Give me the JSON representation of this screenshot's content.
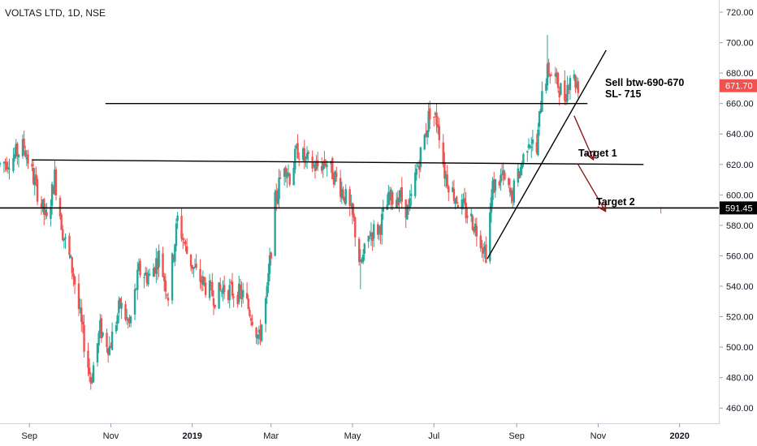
{
  "header": {
    "title": "VOLTAS LTD, 1D, NSE"
  },
  "chart_data": {
    "type": "candlestick",
    "symbol": "VOLTAS LTD",
    "interval": "1D",
    "exchange": "NSE",
    "ylim": [
      450,
      728
    ],
    "y_ticks": [
      460,
      480,
      500,
      520,
      540,
      560,
      580,
      600,
      620,
      640,
      660,
      680,
      700,
      720
    ],
    "y_tick_labels": [
      "460.00",
      "480.00",
      "500.00",
      "520.00",
      "540.00",
      "560.00",
      "580.00",
      "600.00",
      "620.00",
      "640.00",
      "660.00",
      "680.00",
      "700.00",
      "720.00"
    ],
    "x_ticks": [
      {
        "label": "Sep",
        "date": "2018-09-01",
        "year": false
      },
      {
        "label": "Nov",
        "date": "2018-11-01",
        "year": false
      },
      {
        "label": "2019",
        "date": "2019-01-01",
        "year": true
      },
      {
        "label": "Mar",
        "date": "2019-03-01",
        "year": false
      },
      {
        "label": "May",
        "date": "2019-05-01",
        "year": false
      },
      {
        "label": "Jul",
        "date": "2019-07-01",
        "year": false
      },
      {
        "label": "Sep",
        "date": "2019-09-01",
        "year": false
      },
      {
        "label": "Nov",
        "date": "2019-11-01",
        "year": false
      },
      {
        "label": "2020",
        "date": "2020-01-01",
        "year": true
      }
    ],
    "xlim": [
      "2018-08-10",
      "2020-01-31"
    ],
    "price_path": [
      [
        "2018-08-10",
        620
      ],
      [
        "2018-08-20",
        625
      ],
      [
        "2018-08-28",
        632
      ],
      [
        "2018-09-05",
        608
      ],
      [
        "2018-09-14",
        582
      ],
      [
        "2018-09-20",
        612
      ],
      [
        "2018-09-26",
        576
      ],
      [
        "2018-10-04",
        548
      ],
      [
        "2018-10-11",
        508
      ],
      [
        "2018-10-17",
        478
      ],
      [
        "2018-10-24",
        512
      ],
      [
        "2018-10-31",
        500
      ],
      [
        "2018-11-08",
        528
      ],
      [
        "2018-11-15",
        514
      ],
      [
        "2018-11-22",
        550
      ],
      [
        "2018-11-30",
        546
      ],
      [
        "2018-12-07",
        560
      ],
      [
        "2018-12-14",
        534
      ],
      [
        "2018-12-21",
        584
      ],
      [
        "2018-12-28",
        562
      ],
      [
        "2019-01-04",
        548
      ],
      [
        "2019-01-11",
        540
      ],
      [
        "2019-01-18",
        533
      ],
      [
        "2019-01-25",
        539
      ],
      [
        "2019-02-01",
        536
      ],
      [
        "2019-02-08",
        534
      ],
      [
        "2019-02-15",
        520
      ],
      [
        "2019-02-20",
        505
      ],
      [
        "2019-02-26",
        535
      ],
      [
        "2019-03-04",
        595
      ],
      [
        "2019-03-11",
        622
      ],
      [
        "2019-03-15",
        612
      ],
      [
        "2019-03-21",
        630
      ],
      [
        "2019-03-27",
        622
      ],
      [
        "2019-04-04",
        618
      ],
      [
        "2019-04-11",
        622
      ],
      [
        "2019-04-18",
        612
      ],
      [
        "2019-04-25",
        600
      ],
      [
        "2019-05-02",
        582
      ],
      [
        "2019-05-07",
        552
      ],
      [
        "2019-05-14",
        575
      ],
      [
        "2019-05-21",
        578
      ],
      [
        "2019-05-28",
        596
      ],
      [
        "2019-06-05",
        600
      ],
      [
        "2019-06-12",
        588
      ],
      [
        "2019-06-18",
        616
      ],
      [
        "2019-06-24",
        638
      ],
      [
        "2019-06-28",
        655
      ],
      [
        "2019-07-04",
        648
      ],
      [
        "2019-07-09",
        615
      ],
      [
        "2019-07-15",
        602
      ],
      [
        "2019-07-22",
        592
      ],
      [
        "2019-07-29",
        584
      ],
      [
        "2019-08-05",
        572
      ],
      [
        "2019-08-09",
        562
      ],
      [
        "2019-08-14",
        605
      ],
      [
        "2019-08-21",
        612
      ],
      [
        "2019-08-28",
        598
      ],
      [
        "2019-09-04",
        618
      ],
      [
        "2019-09-10",
        638
      ],
      [
        "2019-09-16",
        628
      ],
      [
        "2019-09-20",
        672
      ],
      [
        "2019-09-25",
        682
      ],
      [
        "2019-10-01",
        674
      ],
      [
        "2019-10-07",
        664
      ],
      [
        "2019-10-11",
        680
      ],
      [
        "2019-10-17",
        672
      ]
    ],
    "candle_spikes": [
      {
        "date": "2018-10-17",
        "low": 472
      },
      {
        "date": "2019-02-20",
        "low": 502
      },
      {
        "date": "2019-05-07",
        "low": 538
      },
      {
        "date": "2019-08-09",
        "low": 557
      },
      {
        "date": "2019-06-28",
        "high": 662
      },
      {
        "date": "2019-09-24",
        "high": 705
      },
      {
        "date": "2019-12-18",
        "high": 592
      }
    ],
    "lines": [
      {
        "name": "resistance-line",
        "from": [
          "2018-10-28",
          660
        ],
        "to": [
          "2019-10-24",
          660
        ]
      },
      {
        "name": "support-line-1",
        "from": [
          "2018-09-03",
          623
        ],
        "to": [
          "2019-12-05",
          620
        ]
      },
      {
        "name": "support-line-2",
        "from": [
          "2018-08-10",
          591.45
        ],
        "to": [
          "2020-01-31",
          591.45
        ]
      },
      {
        "name": "trend-line",
        "from": [
          "2019-08-10",
          558
        ],
        "to": [
          "2019-11-07",
          695
        ]
      }
    ],
    "arrows": [
      {
        "name": "arrow-to-target-1",
        "from": [
          "2019-10-14",
          652
        ],
        "to": [
          "2019-10-28",
          624
        ]
      },
      {
        "name": "arrow-to-target-2",
        "from": [
          "2019-10-17",
          620
        ],
        "to": [
          "2019-11-06",
          590
        ]
      }
    ],
    "annotations": {
      "sell": "Sell btw-690-670",
      "stoploss": "SL- 715",
      "target1": "Target 1",
      "target2": "Target 2"
    },
    "price_badges": {
      "last_price": {
        "label": "671.70",
        "value": 671.7,
        "color": "#ef5350"
      },
      "level": {
        "label": "591.45",
        "value": 591.45,
        "color": "#000000"
      }
    },
    "colors": {
      "up": "#26a69a",
      "down": "#ef5350",
      "arrow": "#8b1a1a",
      "line": "#000000"
    }
  }
}
